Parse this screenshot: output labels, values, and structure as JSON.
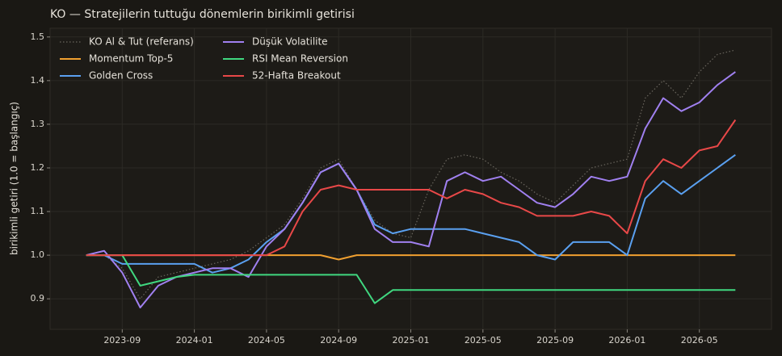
{
  "chart_data": {
    "type": "line",
    "title": "KO — Stratejilerin tuttuğu dönemlerin birikimli getirisi",
    "y_label": "birikimli getiri (1.0 = başlangıç)",
    "x": [
      "2023-07",
      "2023-08",
      "2023-09",
      "2023-10",
      "2023-11",
      "2023-12",
      "2024-01",
      "2024-02",
      "2024-03",
      "2024-04",
      "2024-05",
      "2024-06",
      "2024-07",
      "2024-08",
      "2024-09",
      "2024-10",
      "2024-11",
      "2024-12",
      "2025-01",
      "2025-02",
      "2025-03",
      "2025-04",
      "2025-05",
      "2025-06",
      "2025-07",
      "2025-08",
      "2025-09",
      "2025-10",
      "2025-11",
      "2025-12",
      "2026-01",
      "2026-02",
      "2026-03",
      "2026-04",
      "2026-05",
      "2026-06",
      "2026-07"
    ],
    "xlim": [
      "2023-05",
      "2026-09"
    ],
    "xticks": [
      "2023-09",
      "2024-01",
      "2024-05",
      "2024-09",
      "2025-01",
      "2025-05",
      "2025-09",
      "2026-01",
      "2026-05"
    ],
    "ylim": [
      0.83,
      1.52
    ],
    "yticks": [
      0.9,
      {
        "value": 1,
        "label": "1.0"
      },
      1.1,
      1.2,
      1.3,
      1.4,
      1.5
    ],
    "grid": true,
    "legend": "upper left",
    "series": [
      {
        "name": "KO Al & Tut (referans)",
        "color": "#6a665e",
        "dash": "dotted",
        "values": [
          1.0,
          1.0,
          0.97,
          0.9,
          0.95,
          0.96,
          0.97,
          0.98,
          0.99,
          1.01,
          1.04,
          1.07,
          1.13,
          1.2,
          1.22,
          1.15,
          1.08,
          1.05,
          1.04,
          1.15,
          1.22,
          1.23,
          1.22,
          1.19,
          1.17,
          1.14,
          1.12,
          1.16,
          1.2,
          1.21,
          1.22,
          1.36,
          1.4,
          1.36,
          1.42,
          1.46,
          1.47
        ]
      },
      {
        "name": "Momentum Top-5",
        "color": "#f0a030",
        "values": [
          1.0,
          1.0,
          1.0,
          1.0,
          1.0,
          1.0,
          1.0,
          1.0,
          1.0,
          1.0,
          1.0,
          1.0,
          1.0,
          1.0,
          0.99,
          1.0,
          1.0,
          1.0,
          1.0,
          1.0,
          1.0,
          1.0,
          1.0,
          1.0,
          1.0,
          1.0,
          1.0,
          1.0,
          1.0,
          1.0,
          1.0,
          1.0,
          1.0,
          1.0,
          1.0,
          1.0,
          1.0
        ]
      },
      {
        "name": "Golden Cross",
        "color": "#5aa0f0",
        "values": [
          1.0,
          1.0,
          0.98,
          0.98,
          0.98,
          0.98,
          0.98,
          0.96,
          0.97,
          0.99,
          1.03,
          1.06,
          1.12,
          1.19,
          1.21,
          1.15,
          1.07,
          1.05,
          1.06,
          1.06,
          1.06,
          1.06,
          1.05,
          1.04,
          1.03,
          1.0,
          0.99,
          1.03,
          1.03,
          1.03,
          1.0,
          1.13,
          1.17,
          1.14,
          1.17,
          1.2,
          1.23
        ]
      },
      {
        "name": "Düşük Volatilite",
        "color": "#a080f0",
        "values": [
          1.0,
          1.01,
          0.96,
          0.88,
          0.93,
          0.95,
          0.96,
          0.97,
          0.97,
          0.95,
          1.02,
          1.06,
          1.12,
          1.19,
          1.21,
          1.15,
          1.06,
          1.03,
          1.03,
          1.02,
          1.17,
          1.19,
          1.17,
          1.18,
          1.15,
          1.12,
          1.11,
          1.14,
          1.18,
          1.17,
          1.18,
          1.29,
          1.36,
          1.33,
          1.35,
          1.39,
          1.42
        ]
      },
      {
        "name": "RSI Mean Reversion",
        "color": "#40d880",
        "values": [
          1.0,
          1.0,
          1.0,
          0.93,
          0.94,
          0.95,
          0.955,
          0.955,
          0.955,
          0.955,
          0.955,
          0.955,
          0.955,
          0.955,
          0.955,
          0.955,
          0.89,
          0.92,
          0.92,
          0.92,
          0.92,
          0.92,
          0.92,
          0.92,
          0.92,
          0.92,
          0.92,
          0.92,
          0.92,
          0.92,
          0.92,
          0.92,
          0.92,
          0.92,
          0.92,
          0.92,
          0.92
        ]
      },
      {
        "name": "52-Hafta Breakout",
        "color": "#e84848",
        "values": [
          1.0,
          1.0,
          1.0,
          1.0,
          1.0,
          1.0,
          1.0,
          1.0,
          1.0,
          1.0,
          1.0,
          1.02,
          1.1,
          1.15,
          1.16,
          1.15,
          1.15,
          1.15,
          1.15,
          1.15,
          1.13,
          1.15,
          1.14,
          1.12,
          1.11,
          1.09,
          1.09,
          1.09,
          1.1,
          1.09,
          1.05,
          1.17,
          1.22,
          1.2,
          1.24,
          1.25,
          1.31
        ]
      }
    ]
  }
}
